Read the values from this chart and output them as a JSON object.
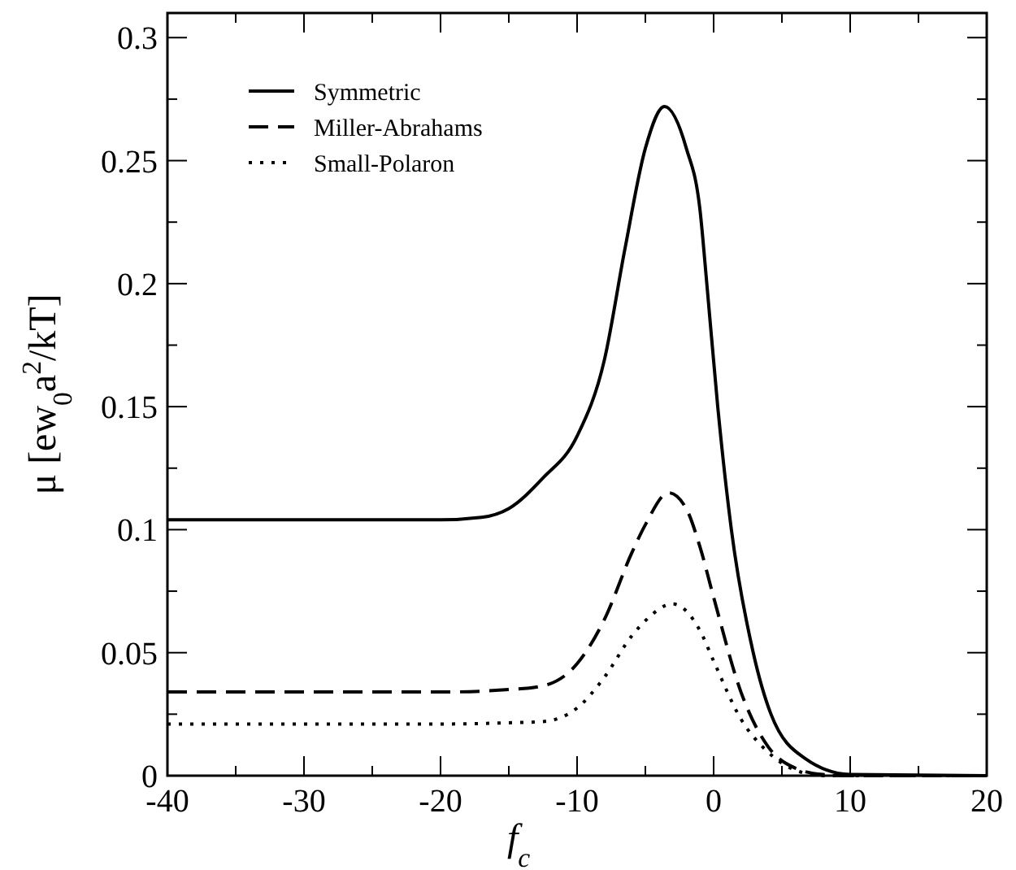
{
  "chart_data": {
    "type": "line",
    "xlabel": "f$_{c}$",
    "ylabel": "μ [ew$_{0}$a$^{2}$/kT]",
    "xlim": [
      -40,
      20
    ],
    "ylim": [
      0,
      0.31
    ],
    "xticks": [
      -40,
      {
        "value": -35,
        "label": null
      },
      -30,
      {
        "value": -25,
        "label": null
      },
      -20,
      {
        "value": -15,
        "label": null
      },
      -10,
      {
        "value": -5,
        "label": null
      },
      0,
      {
        "value": 5,
        "label": null
      },
      10,
      {
        "value": 15,
        "label": null
      },
      20
    ],
    "yticks": [
      0,
      {
        "value": 0.025,
        "label": null
      },
      0.05,
      {
        "value": 0.075,
        "label": null
      },
      0.1,
      {
        "value": 0.125,
        "label": null
      },
      0.15,
      {
        "value": 0.175,
        "label": null
      },
      0.2,
      {
        "value": 0.225,
        "label": null
      },
      0.25,
      {
        "value": 0.275,
        "label": null
      },
      0.3
    ],
    "legend": "top left",
    "grid": false,
    "series": [
      {
        "name": "Symmetric",
        "color": "#000000",
        "line_style": "solid",
        "x": [
          -40,
          -20,
          -17,
          -15,
          -12.5,
          -10,
          -8,
          -6.5,
          -5,
          -3.6,
          -2,
          -1,
          -0.5,
          0.3,
          1.3,
          2.9,
          4.2,
          6.7,
          10,
          20
        ],
        "values": [
          0.104,
          0.104,
          0.105,
          0.1086,
          0.121,
          0.138,
          0.169,
          0.214,
          0.255,
          0.272,
          0.255,
          0.23,
          0.2,
          0.15,
          0.1,
          0.05,
          0.025,
          0.007,
          0.0005,
          0
        ]
      },
      {
        "name": "Miller-Abrahams",
        "color": "#000000",
        "line_style": "dashed",
        "x": [
          -40,
          -20,
          -15,
          -12.5,
          -10,
          -8,
          -6,
          -5,
          -3.3,
          -2,
          -1,
          0,
          2,
          4,
          6,
          8,
          10,
          20
        ],
        "values": [
          0.034,
          0.034,
          0.035,
          0.0365,
          0.0455,
          0.0635,
          0.0905,
          0.102,
          0.115,
          0.1085,
          0.093,
          0.0725,
          0.034,
          0.0117,
          0.003,
          0.0005,
          0,
          0
        ]
      },
      {
        "name": "Small-Polaron",
        "color": "#000000",
        "line_style": "dotted",
        "x": [
          -40,
          -20,
          -15,
          -12.5,
          -10,
          -8,
          -6,
          -5,
          -3,
          -1,
          0,
          2,
          4,
          6,
          8,
          20
        ],
        "values": [
          0.021,
          0.021,
          0.0215,
          0.022,
          0.0275,
          0.04,
          0.0568,
          0.063,
          0.0698,
          0.059,
          0.0466,
          0.023,
          0.0095,
          0.0022,
          0,
          0
        ]
      }
    ]
  }
}
